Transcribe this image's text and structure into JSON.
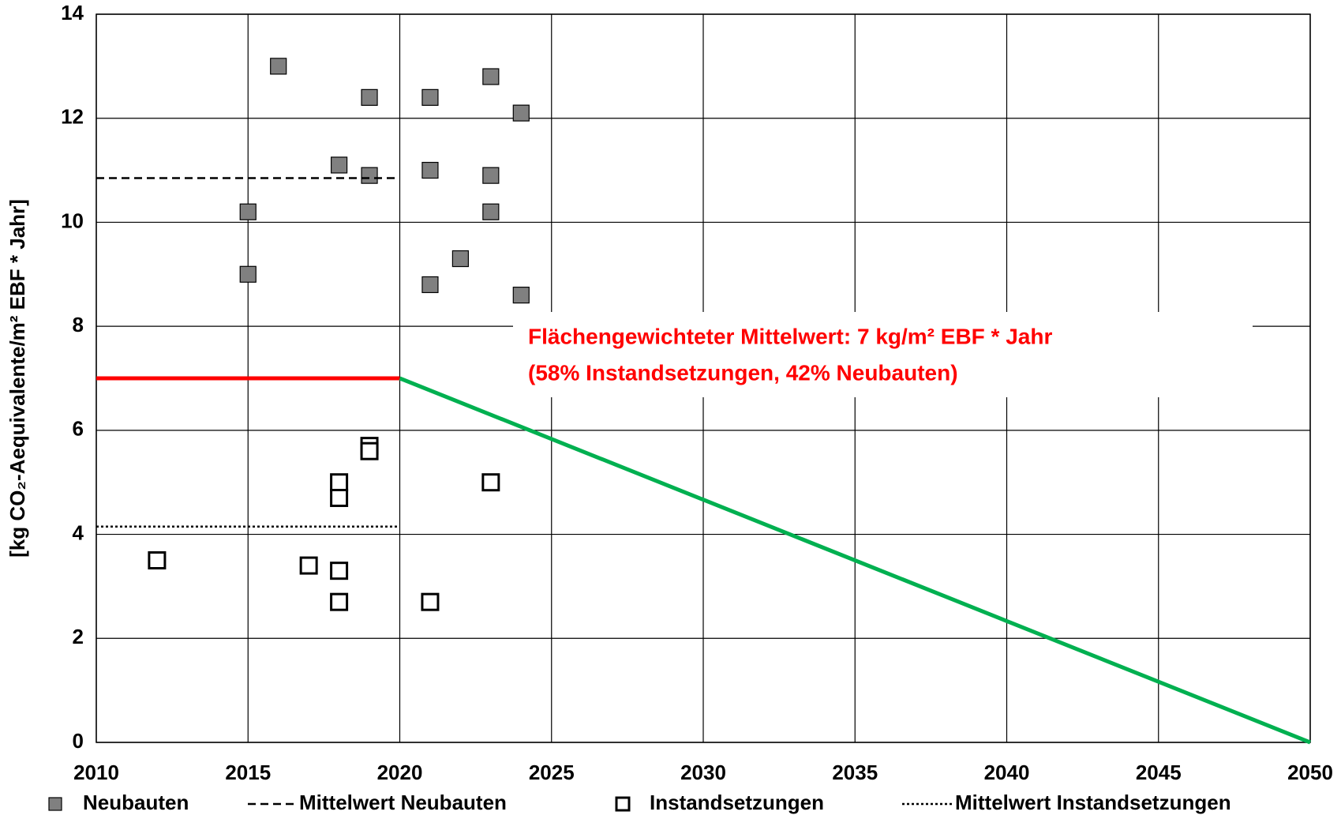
{
  "chart_data": {
    "type": "scatter",
    "ylabel": "[kg CO₂-Aequivalente/m² EBF * Jahr]",
    "annotations": [
      "Flächengewichteter Mittelwert: 7 kg/m² EBF * Jahr",
      "(58% Instandsetzungen, 42% Neubauten)"
    ],
    "annotation_color": "#ff0000",
    "xlim": [
      2010,
      2050
    ],
    "xticks": [
      2010,
      2015,
      2020,
      2025,
      2030,
      2035,
      2040,
      2045,
      2050
    ],
    "ylim": [
      0,
      14
    ],
    "yticks": [
      0,
      2,
      4,
      6,
      8,
      10,
      12,
      14
    ],
    "grid": true,
    "series": [
      {
        "name": "Neubauten",
        "style": "filled-square",
        "color": "#808080",
        "x": [
          2015,
          2015,
          2016,
          2018,
          2019,
          2019,
          2021,
          2021,
          2021,
          2022,
          2023,
          2023,
          2023,
          2024,
          2024
        ],
        "values": [
          10.2,
          9.0,
          13.0,
          11.1,
          12.4,
          10.9,
          12.4,
          11.0,
          8.8,
          9.3,
          12.8,
          10.9,
          10.2,
          12.1,
          8.6
        ]
      },
      {
        "name": "Mittelwert Neubauten",
        "style": "dashed",
        "color": "#000000",
        "x": [
          2010,
          2020
        ],
        "values": [
          10.85,
          10.85
        ]
      },
      {
        "name": "Instandsetzungen",
        "style": "open-square",
        "color": "#000000",
        "x": [
          2012,
          2017,
          2018,
          2018,
          2018,
          2018,
          2019,
          2019,
          2021,
          2023
        ],
        "values": [
          3.5,
          3.4,
          5.0,
          4.7,
          3.3,
          2.7,
          5.7,
          5.6,
          2.7,
          5.0
        ]
      },
      {
        "name": "Mittelwert Instandsetzungen",
        "style": "dotted",
        "color": "#000000",
        "x": [
          2010,
          2020
        ],
        "values": [
          4.15,
          4.15
        ]
      },
      {
        "style": "solid",
        "color": "#ff0000",
        "x": [
          2010,
          2020
        ],
        "values": [
          7,
          7
        ]
      },
      {
        "style": "solid",
        "color": "#00b050",
        "x": [
          2020,
          2050
        ],
        "values": [
          7,
          0
        ]
      }
    ]
  }
}
